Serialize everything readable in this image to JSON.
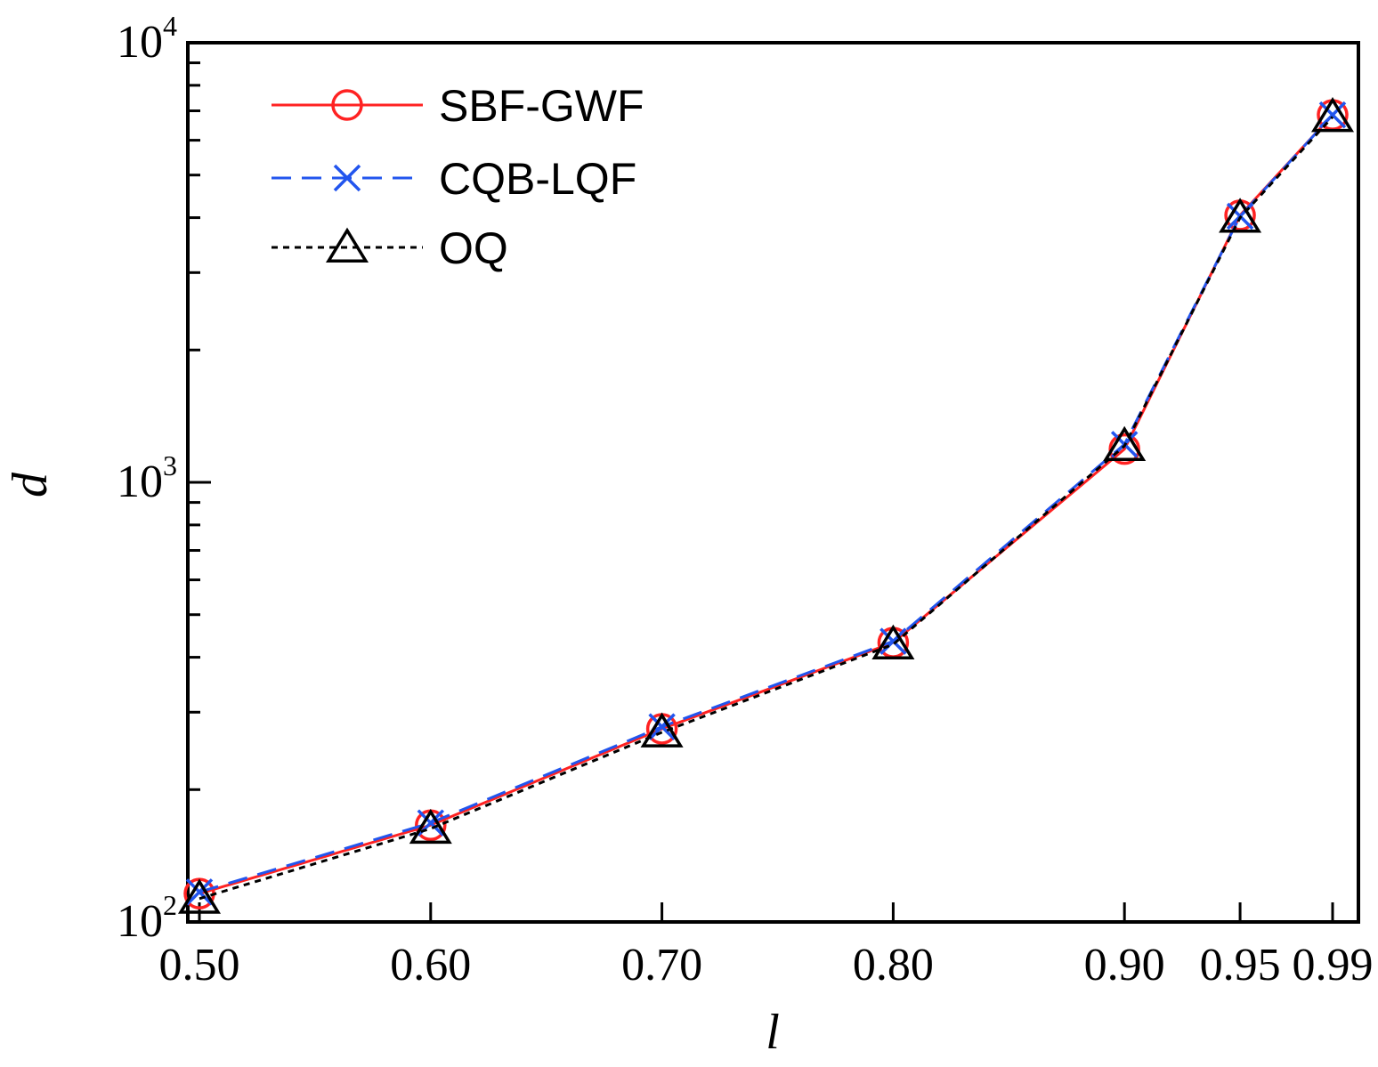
{
  "chart_data": {
    "type": "line",
    "title": "",
    "xlabel": "l",
    "ylabel": "d",
    "yscale": "log",
    "ylim": [
      100,
      10000
    ],
    "categories": [
      "0.50",
      "0.60",
      "0.70",
      "0.80",
      "0.90",
      "0.95",
      "0.99"
    ],
    "x": [
      0.5,
      0.6,
      0.7,
      0.8,
      0.9,
      0.95,
      0.99
    ],
    "y_ticks": [
      {
        "value": 100,
        "base": "10",
        "exp": "2"
      },
      {
        "value": 1000,
        "base": "10",
        "exp": "3"
      },
      {
        "value": 10000,
        "base": "10",
        "exp": "4"
      }
    ],
    "grid": false,
    "legend_position": "top-left",
    "series": [
      {
        "name": "SBF-GWF",
        "color": "#ff2222",
        "line": "solid",
        "marker": "circle",
        "values": [
          116,
          166,
          275,
          432,
          1190,
          4050,
          6850
        ]
      },
      {
        "name": "CQB-LQF",
        "color": "#2255ee",
        "line": "dashed",
        "marker": "x",
        "values": [
          117,
          168,
          278,
          435,
          1220,
          4030,
          6850
        ]
      },
      {
        "name": "OQ",
        "color": "#000000",
        "line": "dotted",
        "marker": "triangle",
        "values": [
          113,
          163,
          270,
          428,
          1210,
          4000,
          6780
        ]
      }
    ]
  }
}
